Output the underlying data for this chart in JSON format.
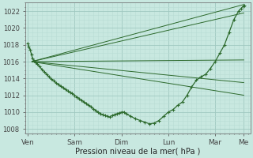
{
  "bg_color": "#c8e8e0",
  "plot_bg_color": "#c8e8e0",
  "grid_major_color": "#a0c8c0",
  "grid_minor_color": "#b8dcd4",
  "line_color": "#2d6a2d",
  "xlabel": "Pression niveau de la mer( hPa )",
  "ylim": [
    1007.5,
    1023.0
  ],
  "yticks": [
    1008,
    1010,
    1012,
    1014,
    1016,
    1018,
    1020,
    1022
  ],
  "xtick_labels": [
    "Ven",
    "Sam",
    "Dim",
    "Lun",
    "Mar",
    "Me"
  ],
  "xtick_positions": [
    0,
    1,
    2,
    3,
    4,
    4.6
  ],
  "xlim": [
    -0.05,
    4.75
  ],
  "fan_lines": [
    {
      "x": [
        0.08,
        4.62
      ],
      "y": [
        1016.0,
        1022.8
      ]
    },
    {
      "x": [
        0.08,
        4.62
      ],
      "y": [
        1016.0,
        1021.8
      ]
    },
    {
      "x": [
        0.08,
        4.62
      ],
      "y": [
        1016.0,
        1016.2
      ]
    },
    {
      "x": [
        0.08,
        4.62
      ],
      "y": [
        1016.0,
        1013.5
      ]
    },
    {
      "x": [
        0.08,
        4.62
      ],
      "y": [
        1016.0,
        1012.0
      ]
    }
  ],
  "main_curve_x": [
    0.0,
    0.02,
    0.05,
    0.08,
    0.1,
    0.13,
    0.16,
    0.2,
    0.25,
    0.3,
    0.35,
    0.4,
    0.45,
    0.5,
    0.55,
    0.6,
    0.65,
    0.7,
    0.75,
    0.8,
    0.85,
    0.9,
    0.95,
    1.0,
    1.05,
    1.1,
    1.15,
    1.2,
    1.25,
    1.3,
    1.35,
    1.4,
    1.45,
    1.5,
    1.55,
    1.6,
    1.65,
    1.7,
    1.75,
    1.8,
    1.85,
    1.9,
    1.95,
    2.0,
    2.05,
    2.1,
    2.2,
    2.3,
    2.4,
    2.5,
    2.6,
    2.7,
    2.8,
    2.9,
    3.0,
    3.1,
    3.2,
    3.3,
    3.4,
    3.5,
    3.6,
    3.7,
    3.8,
    3.9,
    4.0,
    4.1,
    4.2,
    4.3,
    4.4,
    4.5,
    4.55,
    4.6,
    4.62
  ],
  "main_curve_y": [
    1018.2,
    1017.8,
    1017.4,
    1016.8,
    1016.4,
    1016.1,
    1015.9,
    1015.7,
    1015.4,
    1015.1,
    1014.8,
    1014.5,
    1014.2,
    1013.9,
    1013.7,
    1013.5,
    1013.3,
    1013.1,
    1012.9,
    1012.7,
    1012.5,
    1012.3,
    1012.2,
    1012.0,
    1011.8,
    1011.6,
    1011.4,
    1011.2,
    1011.0,
    1010.8,
    1010.6,
    1010.4,
    1010.2,
    1010.0,
    1009.8,
    1009.7,
    1009.6,
    1009.5,
    1009.4,
    1009.6,
    1009.7,
    1009.8,
    1009.9,
    1010.0,
    1010.0,
    1009.8,
    1009.5,
    1009.2,
    1009.0,
    1008.8,
    1008.6,
    1008.7,
    1009.0,
    1009.5,
    1010.0,
    1010.3,
    1010.8,
    1011.2,
    1012.0,
    1013.0,
    1013.8,
    1014.2,
    1014.5,
    1015.2,
    1016.0,
    1017.0,
    1018.0,
    1019.5,
    1021.0,
    1022.0,
    1022.3,
    1022.6,
    1022.7
  ]
}
